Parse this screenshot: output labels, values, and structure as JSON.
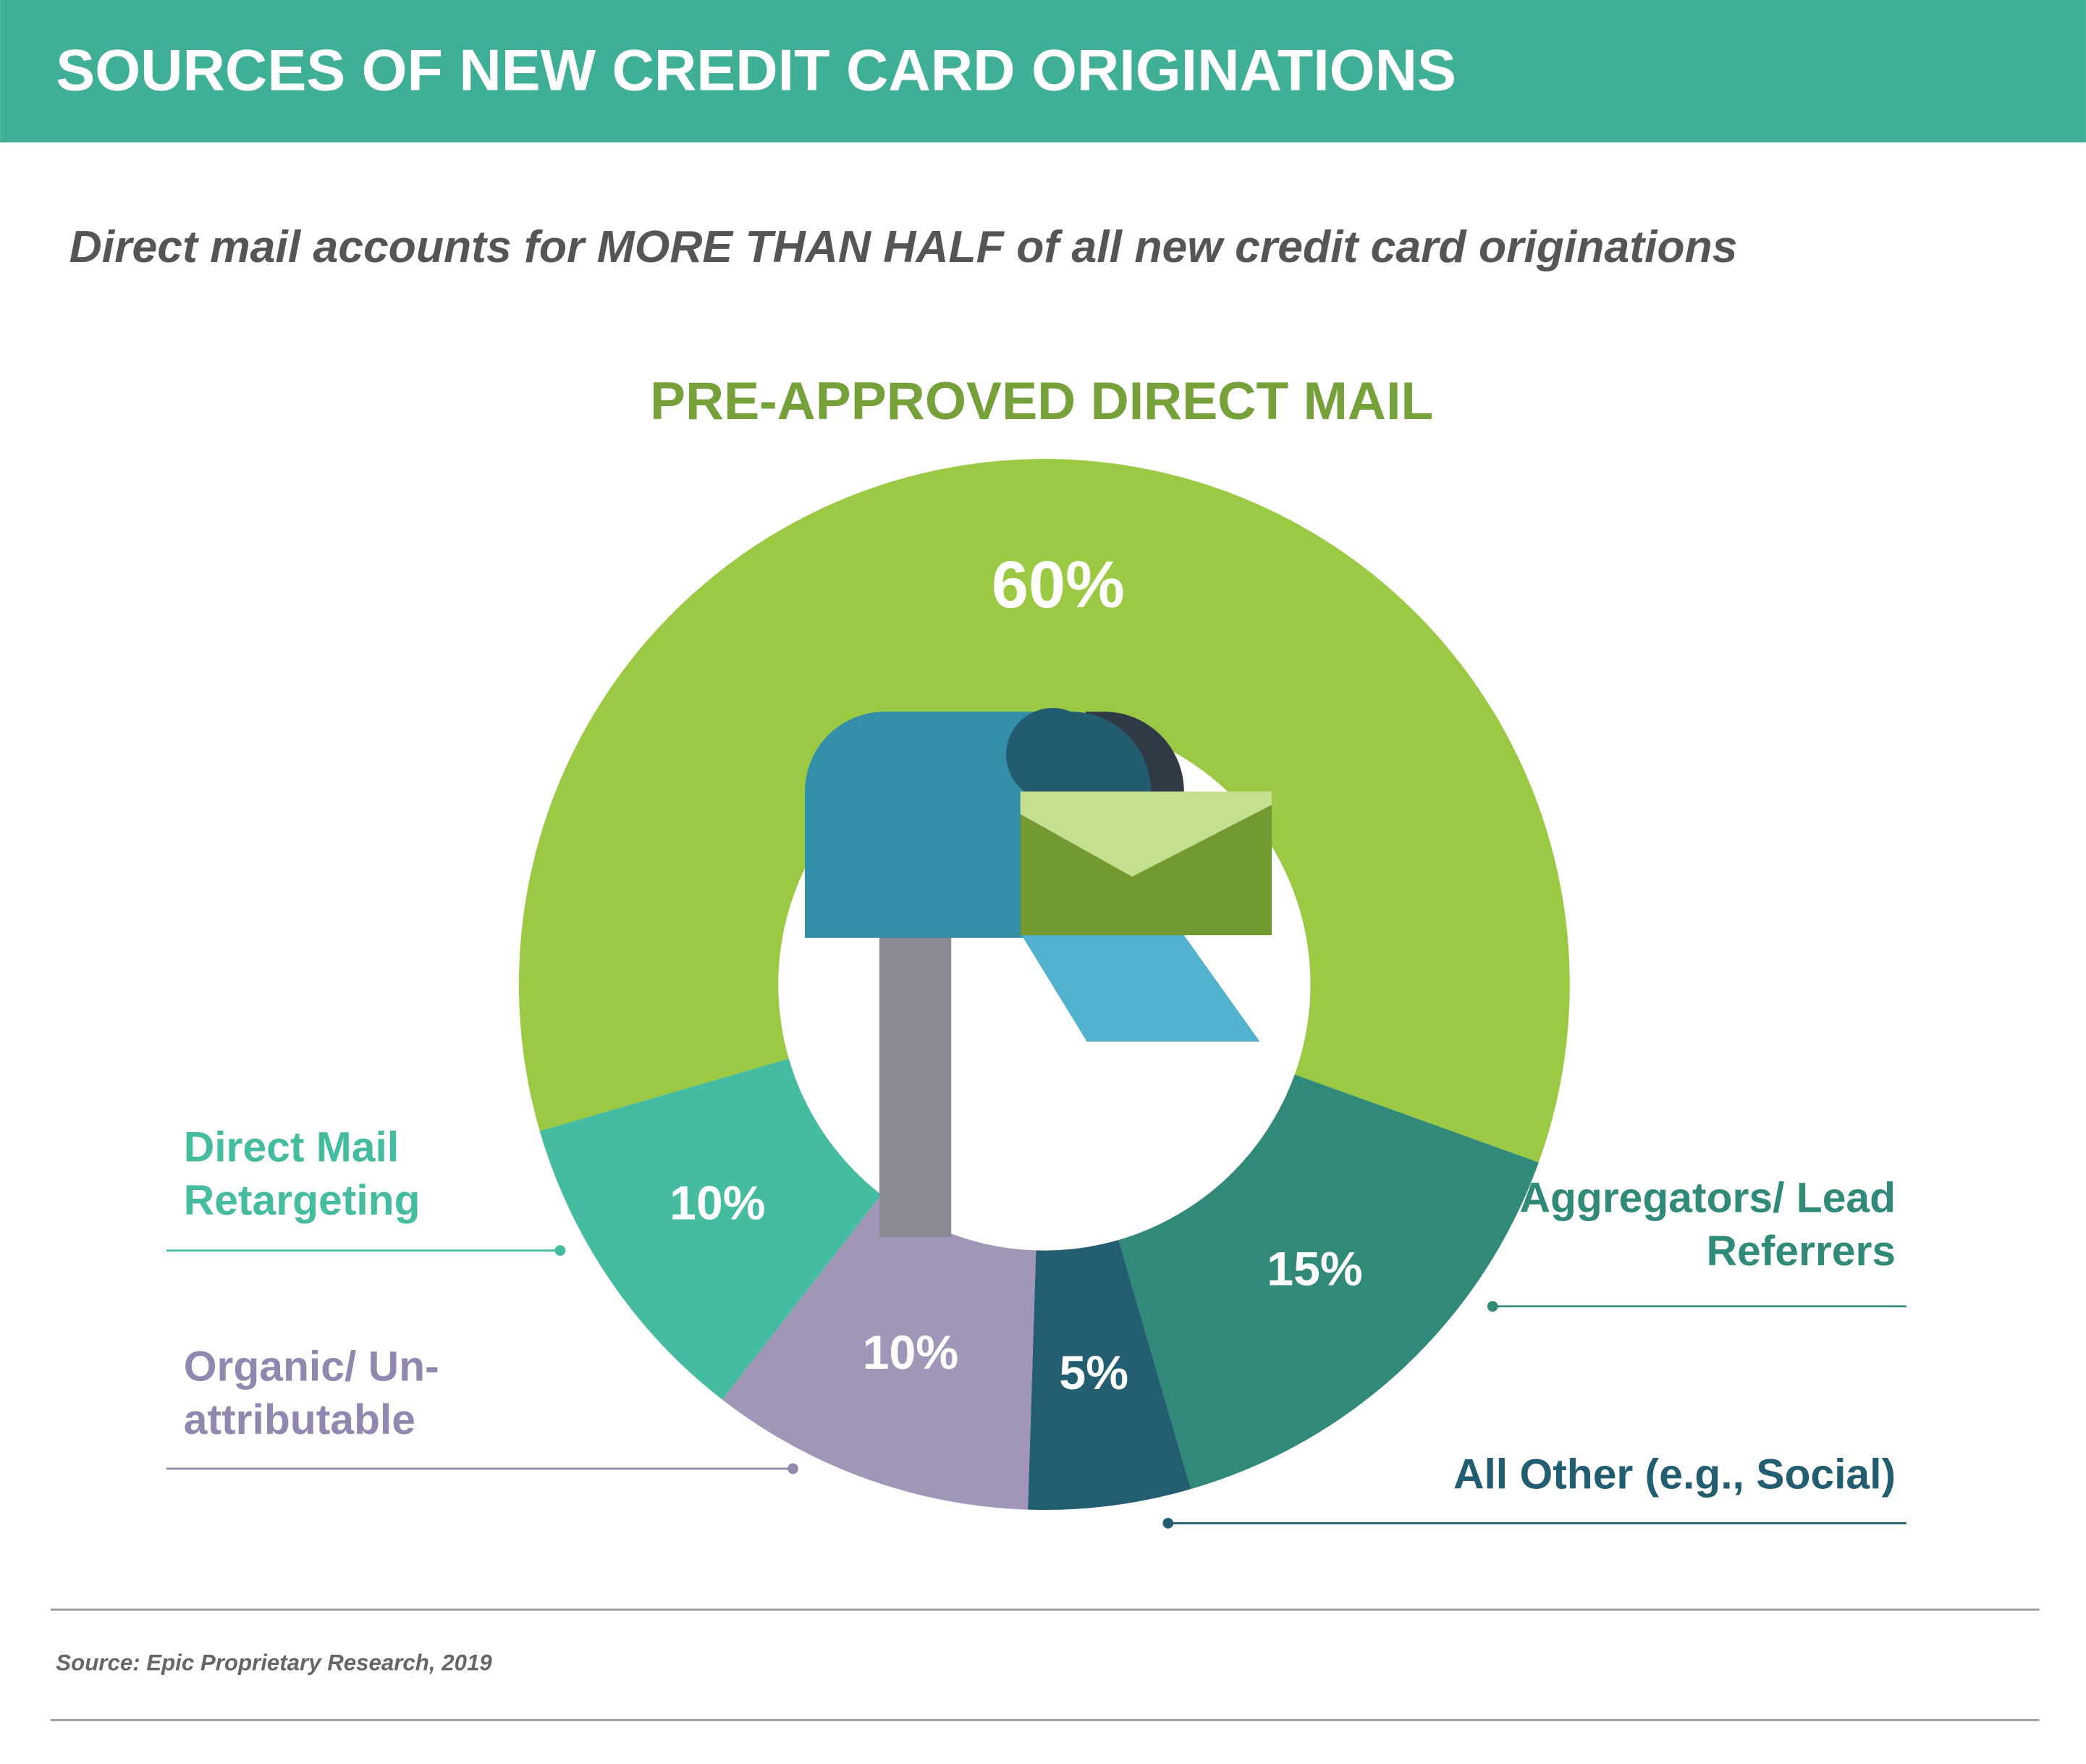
{
  "header": {
    "title": "SOURCES OF NEW CREDIT CARD ORIGINATIONS"
  },
  "subtitle": "Direct mail accounts for MORE THAN HALF of all new credit card originations",
  "chart_data": {
    "type": "donut",
    "categories": [
      "PRE-APPROVED DIRECT MAIL",
      "Aggregators/ Lead Referrers",
      "All Other (e.g., Social)",
      "Organic/ Un-attributable",
      "Direct Mail Retargeting"
    ],
    "values": [
      60,
      15,
      5,
      10,
      10
    ],
    "value_labels": [
      "60%",
      "15%",
      "5%",
      "10%",
      "10%"
    ],
    "colors": [
      "#9bc944",
      "#318a79",
      "#225e6f",
      "#a196b8",
      "#45bba0"
    ],
    "label_colors": [
      "#76a03a",
      "#318a79",
      "#225e6f",
      "#9287ae",
      "#45bba0"
    ]
  },
  "source": "Source: Epic Proprietary Research, 2019"
}
